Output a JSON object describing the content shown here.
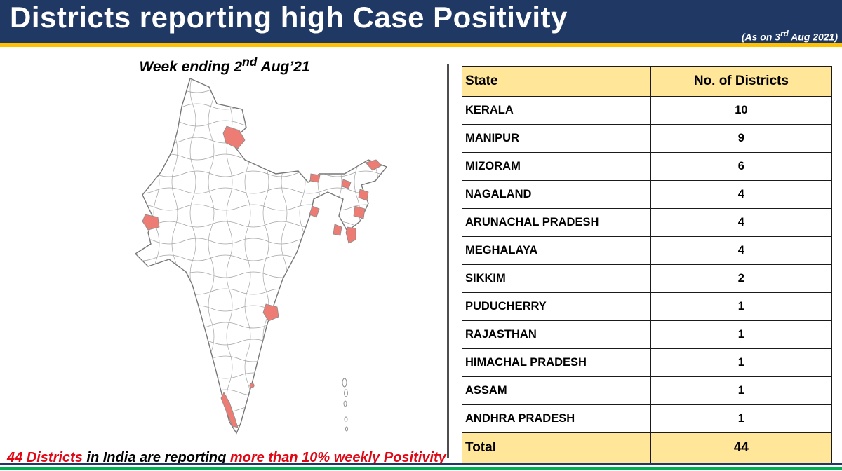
{
  "header": {
    "title": "Districts reporting high Case Positivity",
    "as_on": {
      "prefix": "(As on 3",
      "sup": "rd",
      "suffix": " Aug 2021)"
    }
  },
  "map": {
    "caption": {
      "prefix": "Week ending 2",
      "sup": "nd",
      "suffix": " Aug’21"
    },
    "highlight_color": "#ED7D74",
    "highlighted_regions": [
      "Himachal Pradesh",
      "Rajasthan (west)",
      "Sikkim",
      "Arunachal Pradesh",
      "Assam",
      "Nagaland",
      "Manipur",
      "Mizoram",
      "Tripura",
      "Meghalaya area",
      "East-central district",
      "Kerala coast",
      "Puducherry"
    ]
  },
  "table": {
    "headers": [
      "State",
      "No. of Districts"
    ],
    "rows": [
      {
        "state": "KERALA",
        "districts": "10"
      },
      {
        "state": "MANIPUR",
        "districts": "9"
      },
      {
        "state": "MIZORAM",
        "districts": "6"
      },
      {
        "state": "NAGALAND",
        "districts": "4"
      },
      {
        "state": "ARUNACHAL PRADESH",
        "districts": "4"
      },
      {
        "state": "MEGHALAYA",
        "districts": "4"
      },
      {
        "state": "SIKKIM",
        "districts": "2"
      },
      {
        "state": "PUDUCHERRY",
        "districts": "1"
      },
      {
        "state": "RAJASTHAN",
        "districts": "1"
      },
      {
        "state": "HIMACHAL PRADESH",
        "districts": "1"
      },
      {
        "state": "ASSAM",
        "districts": "1"
      },
      {
        "state": "ANDHRA PRADESH",
        "districts": "1"
      }
    ],
    "total": {
      "label": "Total",
      "value": "44"
    }
  },
  "note": {
    "part1": "44 Districts",
    "part2": " in India are reporting ",
    "part3": "more than 10% weekly Positivity"
  },
  "colors": {
    "header_bg": "#1F3864",
    "accent_gold": "#FFC000",
    "table_header_bg": "#FFE699",
    "note_red": "#E00613",
    "bottom_green": "#00B050",
    "district_highlight": "#ED7D74"
  }
}
